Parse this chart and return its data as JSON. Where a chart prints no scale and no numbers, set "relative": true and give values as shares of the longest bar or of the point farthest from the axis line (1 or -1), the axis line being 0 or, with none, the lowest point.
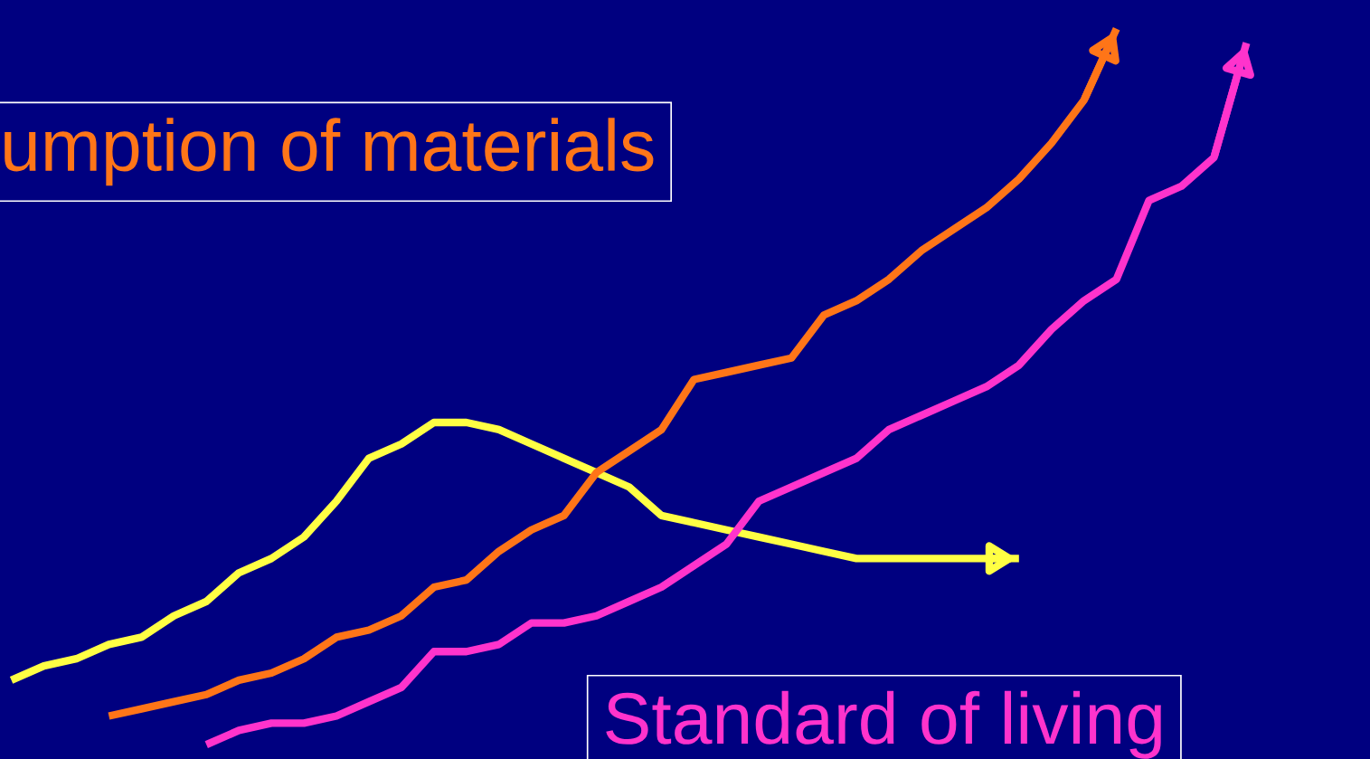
{
  "chart_data": {
    "type": "line",
    "relative": true,
    "legend": false,
    "marker": "none",
    "line_style": "solid",
    "categories": [
      null,
      null,
      null,
      null,
      null,
      null,
      null,
      null,
      null,
      null,
      null,
      null,
      null,
      null,
      null,
      null,
      null,
      null,
      null,
      null,
      null,
      null,
      null,
      null,
      null,
      null,
      null,
      null,
      null,
      null,
      null,
      null,
      null,
      null,
      null,
      null,
      null,
      null,
      null
    ],
    "series": [
      {
        "color": "#ffff44",
        "values": [
          0.09,
          0.11,
          0.12,
          0.14,
          0.15,
          0.18,
          0.2,
          0.24,
          0.26,
          0.29,
          0.34,
          0.4,
          0.42,
          0.45,
          0.45,
          0.44,
          0.42,
          0.4,
          0.38,
          0.36,
          0.32,
          0.31,
          0.3,
          0.29,
          0.28,
          0.27,
          0.26,
          0.26,
          0.26,
          0.26,
          0.26,
          0.26,
          null,
          null,
          null,
          null,
          null,
          null,
          null
        ]
      },
      {
        "name": "umption of materials",
        "color": "#ff7518",
        "values": [
          null,
          null,
          null,
          0.04,
          0.05,
          0.06,
          0.07,
          0.09,
          0.1,
          0.12,
          0.15,
          0.16,
          0.18,
          0.22,
          0.23,
          0.27,
          0.3,
          0.32,
          0.38,
          0.41,
          0.44,
          0.51,
          0.52,
          0.53,
          0.54,
          0.6,
          0.62,
          0.65,
          0.69,
          0.72,
          0.75,
          0.79,
          0.84,
          0.9,
          1.0,
          null,
          null,
          null,
          null
        ]
      },
      {
        "name": "Standard of living",
        "color": "#ff33cc",
        "values": [
          null,
          null,
          null,
          null,
          null,
          null,
          0.0,
          0.02,
          0.03,
          0.03,
          0.04,
          0.06,
          0.08,
          0.13,
          0.13,
          0.14,
          0.17,
          0.17,
          0.18,
          0.2,
          0.22,
          0.25,
          0.28,
          0.34,
          0.36,
          0.38,
          0.4,
          0.44,
          0.46,
          0.48,
          0.5,
          0.53,
          0.58,
          0.62,
          0.65,
          0.76,
          0.78,
          0.82,
          0.98
        ]
      }
    ]
  }
}
